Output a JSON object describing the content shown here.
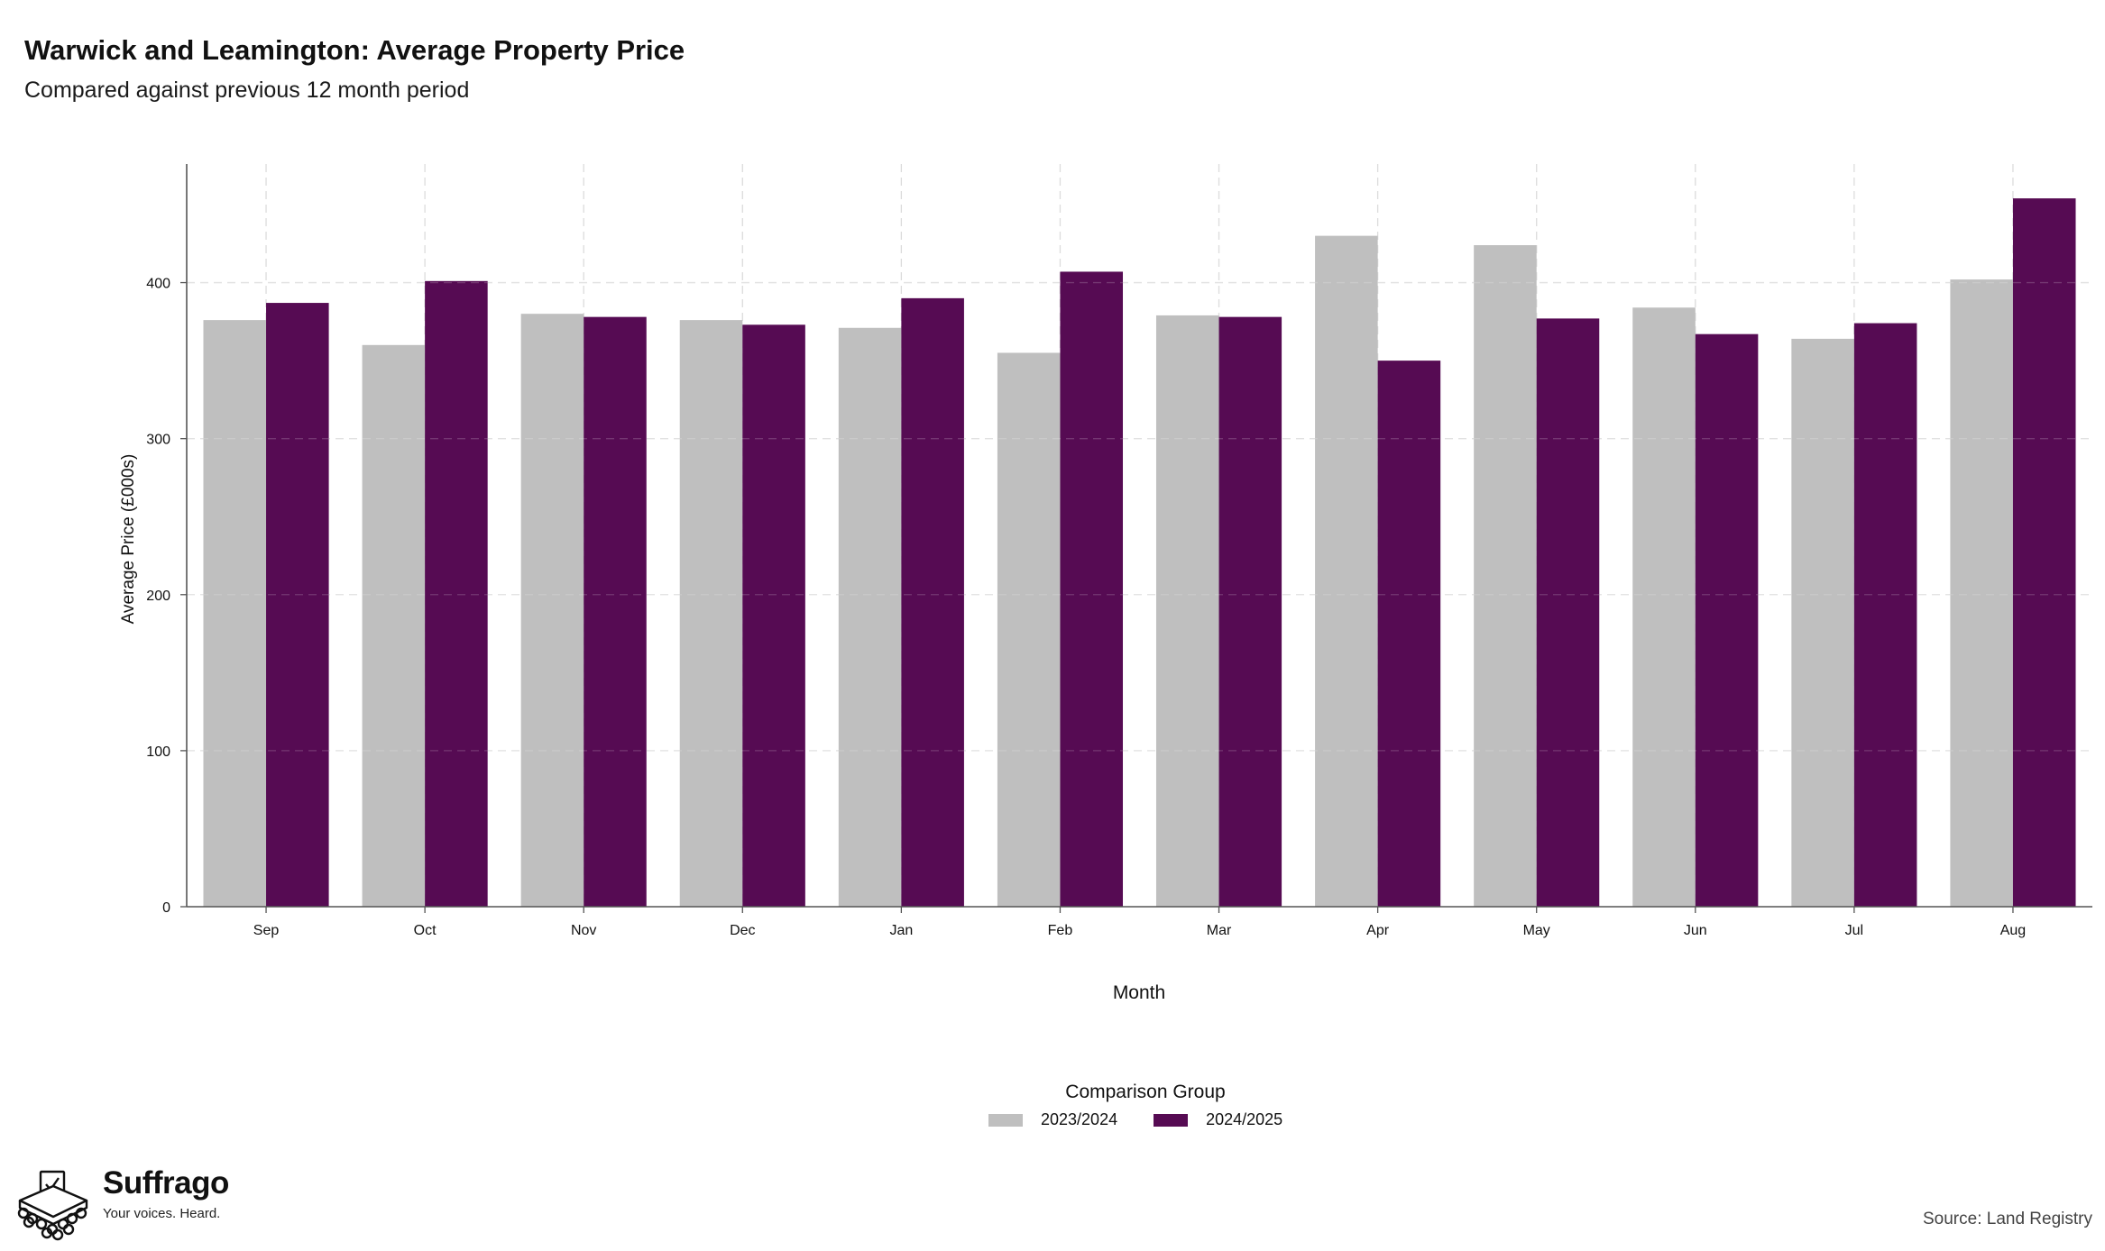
{
  "chart_data": {
    "type": "bar",
    "title": "Warwick and Leamington: Average Property Price",
    "subtitle": "Compared against previous 12 month period",
    "xlabel": "Month",
    "ylabel": "Average Price (£000s)",
    "categories": [
      "Sep",
      "Oct",
      "Nov",
      "Dec",
      "Jan",
      "Feb",
      "Mar",
      "Apr",
      "May",
      "Jun",
      "Jul",
      "Aug"
    ],
    "series": [
      {
        "name": "2023/2024",
        "color": "#bfbfbf",
        "values": [
          376,
          360,
          380,
          376,
          371,
          355,
          379,
          430,
          424,
          384,
          364,
          402
        ]
      },
      {
        "name": "2024/2025",
        "color": "#560b53",
        "values": [
          387,
          401,
          378,
          373,
          390,
          407,
          378,
          350,
          377,
          367,
          374,
          454
        ]
      }
    ],
    "ylim": [
      0,
      476
    ],
    "yticks": [
      0,
      100,
      200,
      300,
      400
    ],
    "grid": true,
    "legend": {
      "title": "Comparison Group",
      "position": "bottom"
    }
  },
  "branding": {
    "name": "Suffrago",
    "tagline": "Your voices. Heard.",
    "logo_icon": "ballot-box-icon"
  },
  "source": "Source: Land Registry"
}
